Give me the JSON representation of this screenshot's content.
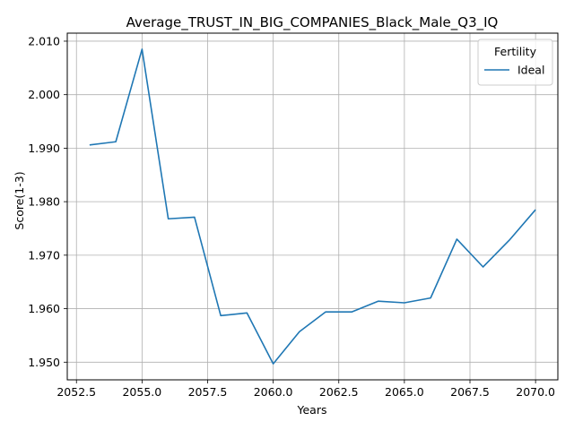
{
  "chart_data": {
    "type": "line",
    "title": "Average_TRUST_IN_BIG_COMPANIES_Black_Male_Q3_IQ",
    "xlabel": "Years",
    "ylabel": "Score(1-3)",
    "xlim": [
      2052.15,
      2070.85
    ],
    "ylim": [
      1.9467,
      2.0115
    ],
    "x_ticks": [
      2052.5,
      2055,
      2057.5,
      2060,
      2062.5,
      2065,
      2067.5,
      2070
    ],
    "x_tick_labels": [
      "2052.5",
      "2055.0",
      "2057.5",
      "2060.0",
      "2062.5",
      "2065.0",
      "2067.5",
      "2070.0"
    ],
    "y_ticks": [
      1.95,
      1.96,
      1.97,
      1.98,
      1.99,
      2.0,
      2.01
    ],
    "y_tick_labels": [
      "1.950",
      "1.960",
      "1.970",
      "1.980",
      "1.990",
      "2.000",
      "2.010"
    ],
    "grid": true,
    "legend": {
      "title": "Fertility",
      "position": "top-right"
    },
    "series": [
      {
        "name": "Ideal",
        "color": "#1f77b4",
        "x": [
          2053,
          2054,
          2055,
          2056,
          2057,
          2058,
          2059,
          2060,
          2061,
          2062,
          2063,
          2064,
          2065,
          2066,
          2067,
          2068,
          2069,
          2070
        ],
        "y": [
          1.9906,
          1.9912,
          2.0085,
          1.9768,
          1.9771,
          1.9587,
          1.9592,
          1.9497,
          1.9557,
          1.9594,
          1.9594,
          1.9614,
          1.9611,
          1.962,
          1.973,
          1.9678,
          1.9728,
          1.9785
        ]
      }
    ]
  }
}
